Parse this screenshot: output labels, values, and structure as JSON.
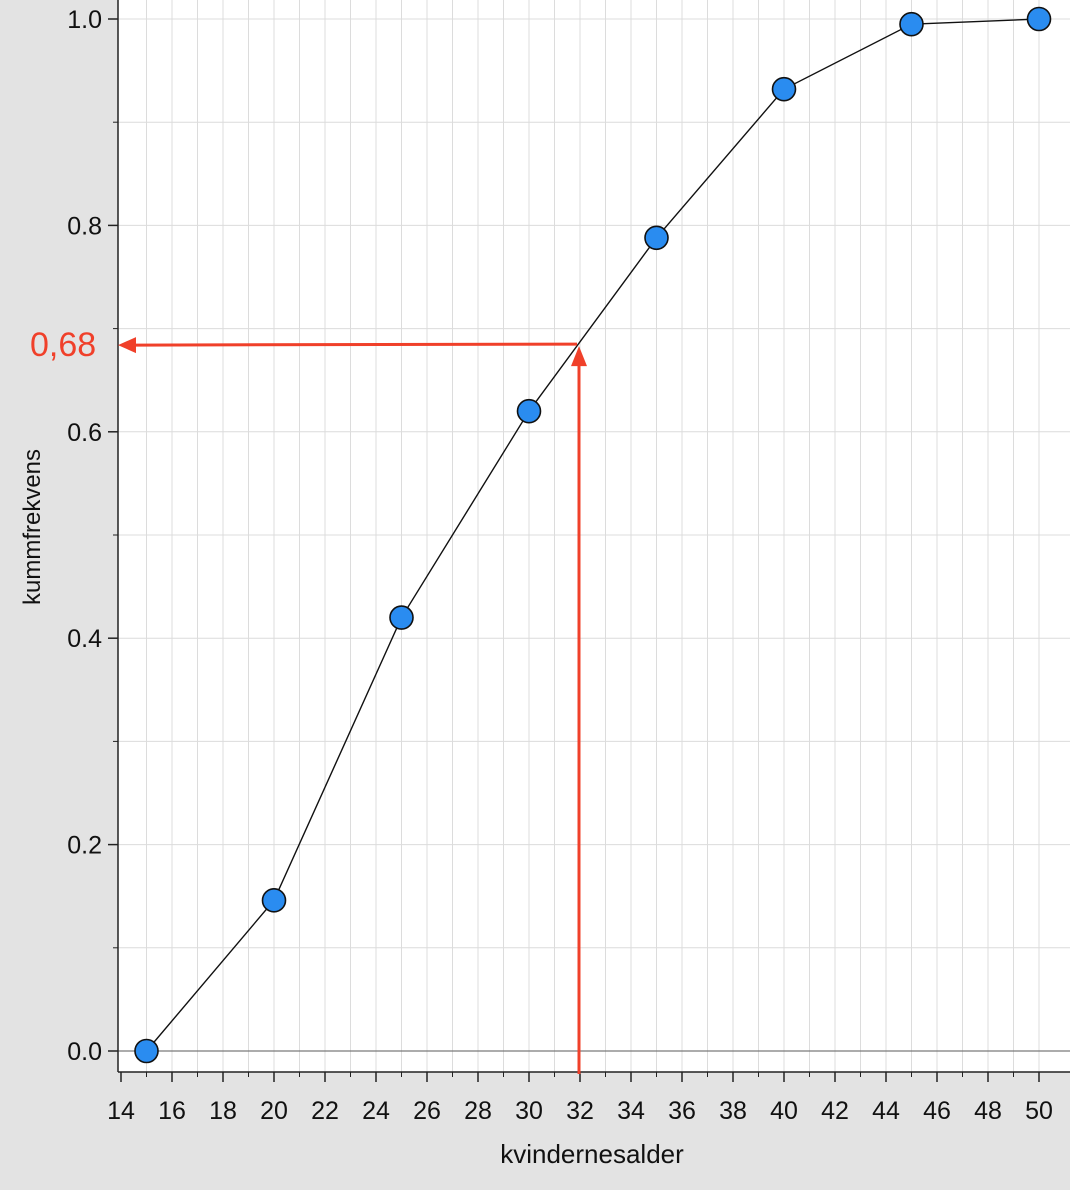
{
  "chart_data": {
    "type": "line",
    "xlabel": "kvindernesalder",
    "ylabel": "kummfrekvens",
    "xlim": [
      14,
      50.6
    ],
    "ylim": [
      -0.02,
      1.0
    ],
    "x_ticks": [
      14,
      16,
      18,
      20,
      22,
      24,
      26,
      28,
      30,
      32,
      34,
      36,
      38,
      40,
      42,
      44,
      46,
      48,
      50
    ],
    "x_tick_labels": [
      "14",
      "16",
      "18",
      "20",
      "22",
      "24",
      "26",
      "28",
      "30",
      "32",
      "34",
      "36",
      "38",
      "40",
      "42",
      "44",
      "46",
      "48",
      "50"
    ],
    "y_major_ticks": [
      0.0,
      0.2,
      0.4,
      0.6,
      0.8,
      1.0
    ],
    "y_tick_labels": [
      "0.0",
      "0.2",
      "0.4",
      "0.6",
      "0.8",
      "1.0"
    ],
    "y_minor_ticks": [
      0.1,
      0.3,
      0.5,
      0.7,
      0.9
    ],
    "grid": true,
    "series": [
      {
        "x": [
          15,
          20,
          25,
          30,
          35,
          40,
          45,
          50
        ],
        "y": [
          0.0,
          0.146,
          0.42,
          0.62,
          0.788,
          0.932,
          0.995,
          1.0
        ],
        "color": "#2a8cf0"
      }
    ],
    "annotations": [
      {
        "label": "0,68",
        "x": 32,
        "y": 0.685,
        "color": "#f0402a"
      }
    ]
  }
}
